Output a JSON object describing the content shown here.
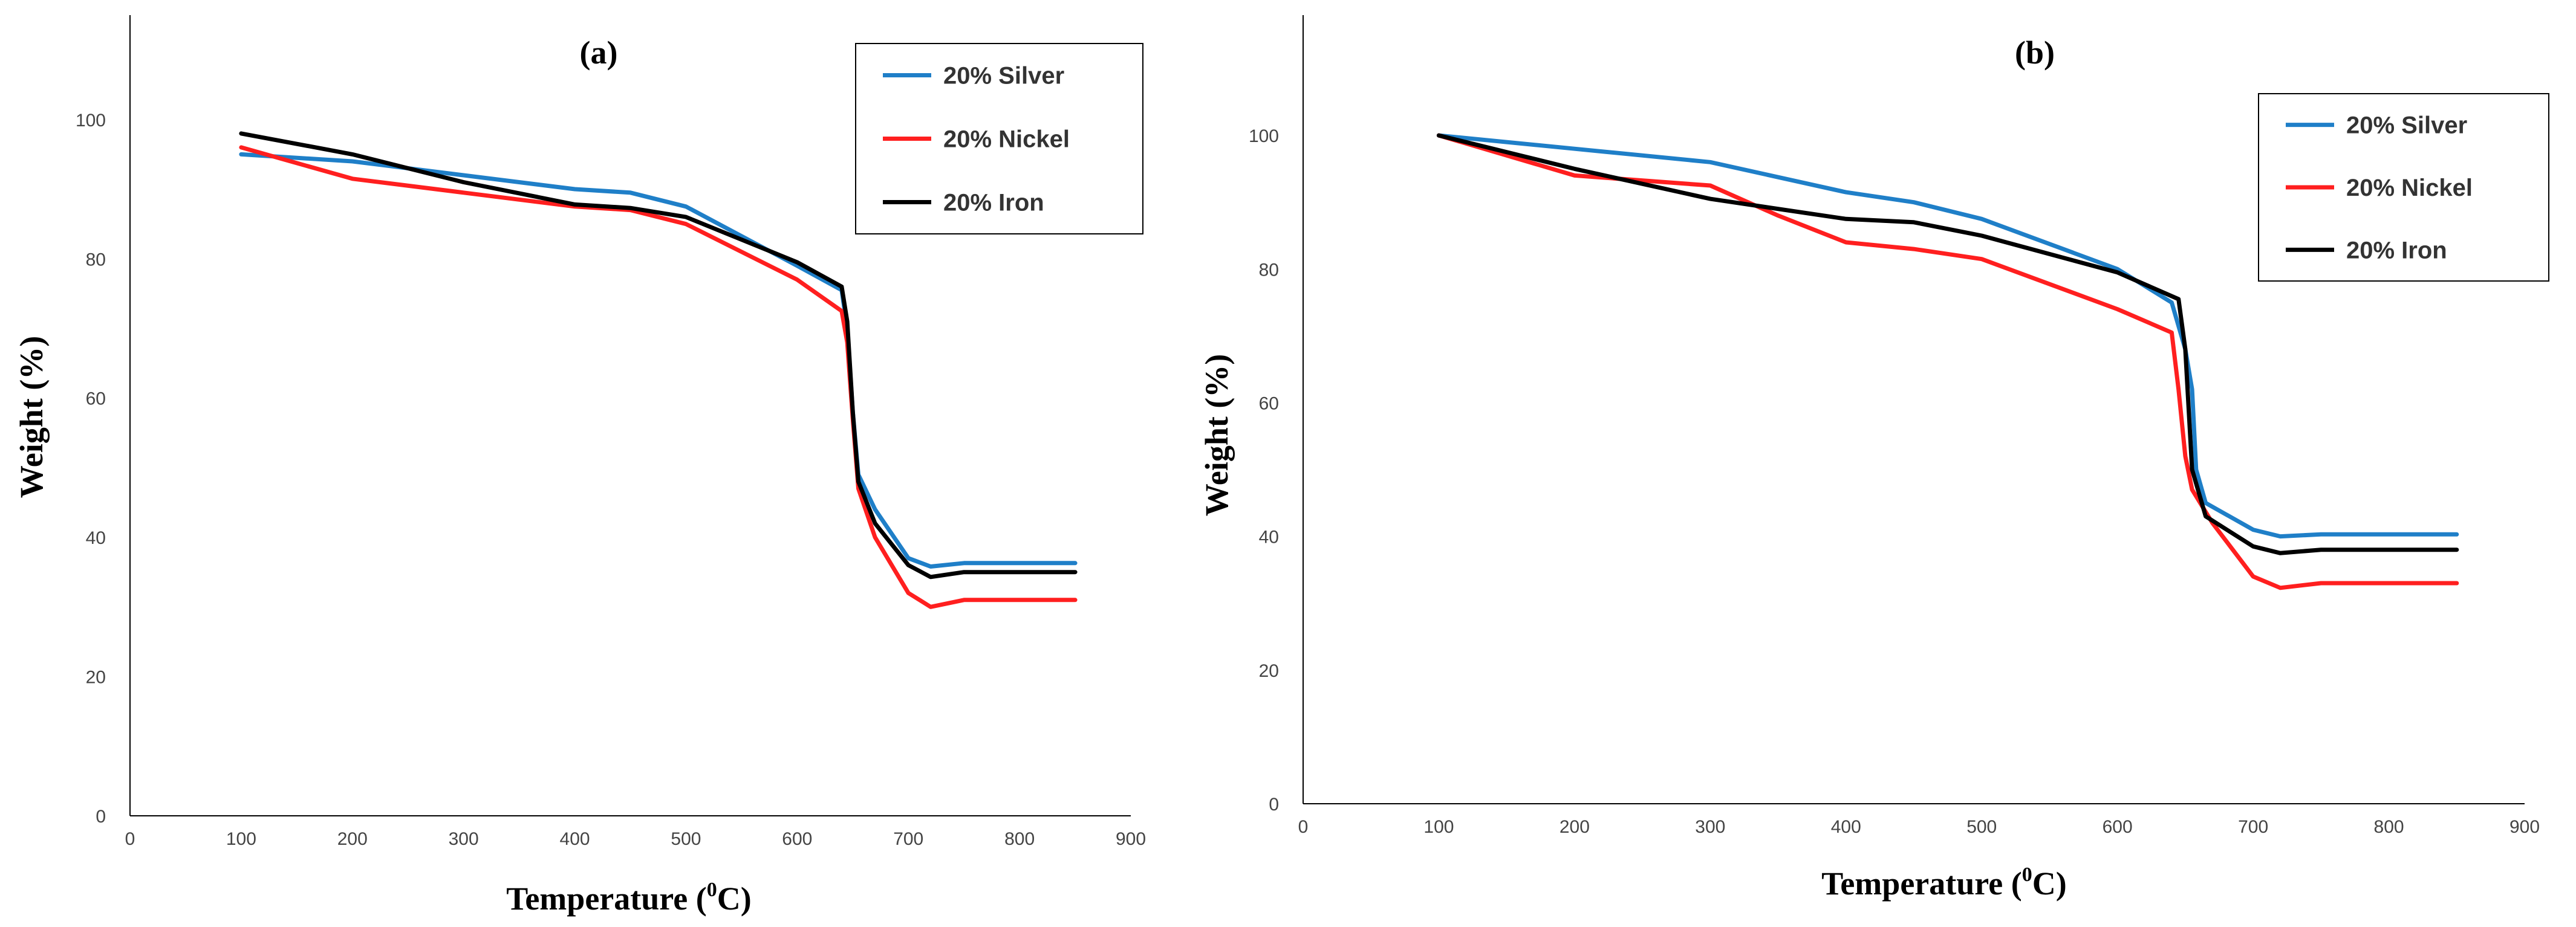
{
  "chart_data": [
    {
      "type": "line",
      "title": "(a)",
      "xlabel": "Temperature (",
      "xlabel_sup": "0",
      "xlabel_end": "C)",
      "ylabel": "Weight (%)",
      "xlim": [
        0,
        900
      ],
      "ylim": [
        0,
        115
      ],
      "x_ticks": [
        0,
        100,
        200,
        300,
        400,
        500,
        600,
        700,
        800,
        900
      ],
      "y_ticks": [
        0,
        20,
        40,
        60,
        80,
        100
      ],
      "legend": "top-right",
      "series": [
        {
          "name": "20% Silver",
          "color": "#1f7fc8",
          "points": [
            [
              100,
              95
            ],
            [
              200,
              94
            ],
            [
              300,
              92
            ],
            [
              400,
              90
            ],
            [
              450,
              89.5
            ],
            [
              500,
              87.5
            ],
            [
              600,
              79
            ],
            [
              640,
              75.5
            ],
            [
              645,
              70
            ],
            [
              650,
              58
            ],
            [
              655,
              49
            ],
            [
              670,
              44
            ],
            [
              700,
              37
            ],
            [
              720,
              35.8
            ],
            [
              750,
              36.3
            ],
            [
              850,
              36.3
            ]
          ]
        },
        {
          "name": "20% Nickel",
          "color": "#ff1f1f",
          "points": [
            [
              100,
              96
            ],
            [
              200,
              91.5
            ],
            [
              300,
              89.5
            ],
            [
              400,
              87.5
            ],
            [
              450,
              87
            ],
            [
              500,
              85
            ],
            [
              600,
              77
            ],
            [
              640,
              72.5
            ],
            [
              645,
              68
            ],
            [
              650,
              57
            ],
            [
              655,
              47
            ],
            [
              670,
              40
            ],
            [
              700,
              32
            ],
            [
              720,
              30
            ],
            [
              750,
              31
            ],
            [
              850,
              31
            ]
          ]
        },
        {
          "name": "20% Iron",
          "color": "#000000",
          "points": [
            [
              100,
              98
            ],
            [
              200,
              95
            ],
            [
              300,
              91
            ],
            [
              400,
              87.8
            ],
            [
              450,
              87.3
            ],
            [
              500,
              86
            ],
            [
              600,
              79.5
            ],
            [
              640,
              76
            ],
            [
              645,
              71
            ],
            [
              650,
              58
            ],
            [
              655,
              48
            ],
            [
              670,
              42
            ],
            [
              700,
              36
            ],
            [
              720,
              34.3
            ],
            [
              750,
              35
            ],
            [
              850,
              35
            ]
          ]
        }
      ]
    },
    {
      "type": "line",
      "title": "(b)",
      "xlabel": "Temperature (",
      "xlabel_sup": "0",
      "xlabel_end": "C)",
      "ylabel": "Weight (%)",
      "xlim": [
        0,
        900
      ],
      "ylim": [
        0,
        118
      ],
      "x_ticks": [
        0,
        100,
        200,
        300,
        400,
        500,
        600,
        700,
        800,
        900
      ],
      "y_ticks": [
        0,
        20,
        40,
        60,
        80,
        100
      ],
      "legend": "top-right",
      "series": [
        {
          "name": "20% Silver",
          "color": "#1f7fc8",
          "points": [
            [
              100,
              100
            ],
            [
              200,
              98
            ],
            [
              300,
              96
            ],
            [
              400,
              91.5
            ],
            [
              450,
              90
            ],
            [
              500,
              87.5
            ],
            [
              600,
              80
            ],
            [
              640,
              75
            ],
            [
              650,
              68
            ],
            [
              655,
              62
            ],
            [
              658,
              50
            ],
            [
              665,
              45
            ],
            [
              700,
              41
            ],
            [
              720,
              40
            ],
            [
              750,
              40.3
            ],
            [
              850,
              40.3
            ]
          ]
        },
        {
          "name": "20% Nickel",
          "color": "#ff1f1f",
          "points": [
            [
              100,
              100
            ],
            [
              200,
              94
            ],
            [
              300,
              92.5
            ],
            [
              350,
              88
            ],
            [
              400,
              84
            ],
            [
              450,
              83
            ],
            [
              500,
              81.5
            ],
            [
              600,
              74
            ],
            [
              640,
              70.5
            ],
            [
              645,
              62
            ],
            [
              650,
              52
            ],
            [
              655,
              47
            ],
            [
              670,
              42
            ],
            [
              700,
              34
            ],
            [
              720,
              32.3
            ],
            [
              750,
              33
            ],
            [
              850,
              33
            ]
          ]
        },
        {
          "name": "20% Iron",
          "color": "#000000",
          "points": [
            [
              100,
              100
            ],
            [
              200,
              95
            ],
            [
              300,
              90.5
            ],
            [
              400,
              87.5
            ],
            [
              450,
              87
            ],
            [
              500,
              85
            ],
            [
              600,
              79.5
            ],
            [
              645,
              75.5
            ],
            [
              650,
              68
            ],
            [
              655,
              50
            ],
            [
              665,
              43
            ],
            [
              700,
              38.5
            ],
            [
              720,
              37.5
            ],
            [
              750,
              38
            ],
            [
              850,
              38
            ]
          ]
        }
      ]
    }
  ]
}
